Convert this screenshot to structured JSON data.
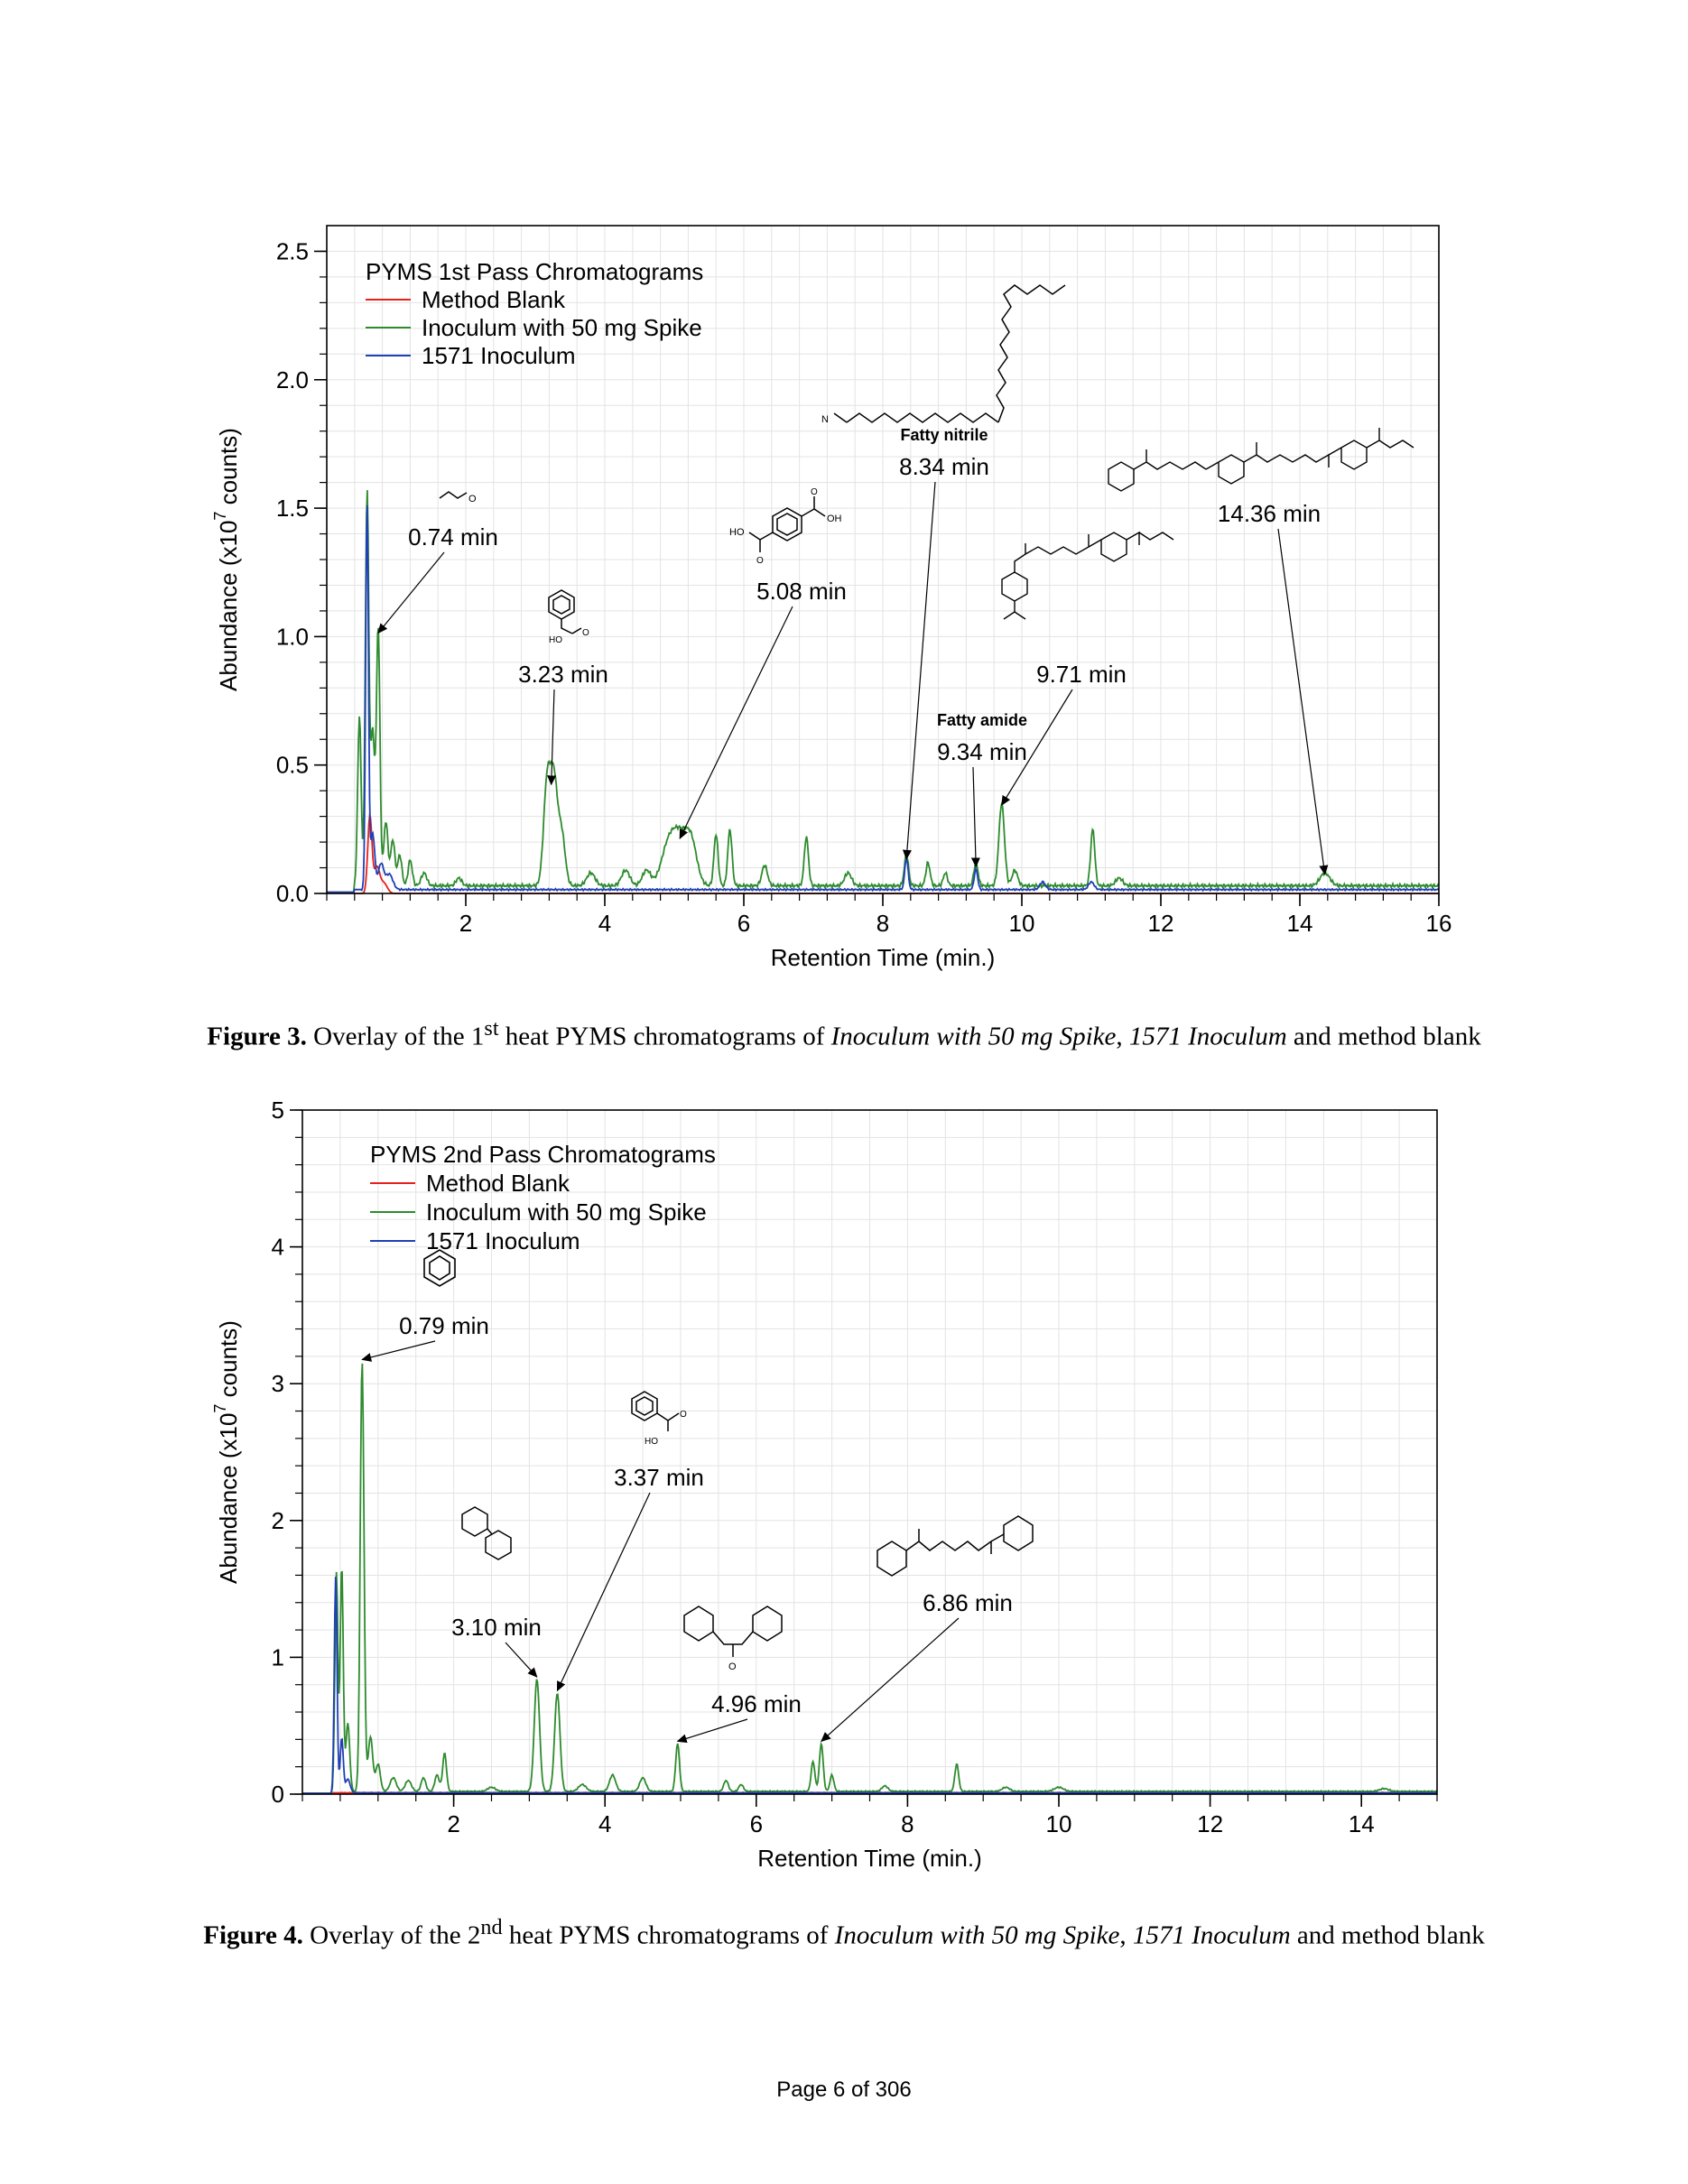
{
  "chart_data": [
    {
      "type": "line",
      "title": "",
      "legend_title": "PYMS 1st Pass Chromatograms",
      "legend_position": "top-left",
      "xlabel": "Retention Time (min.)",
      "ylabel": "Abundance (x10",
      "ylabel_exp": "7",
      "ylabel_end": " counts)",
      "xlim": [
        0,
        16
      ],
      "ylim": [
        0,
        2.6
      ],
      "xticks": [
        2,
        4,
        6,
        8,
        10,
        12,
        14,
        16
      ],
      "yticks": [
        0.0,
        0.5,
        1.0,
        1.5,
        2.0,
        2.5
      ],
      "ytick_labels": [
        "0.0",
        "0.5",
        "1.0",
        "1.5",
        "2.0",
        "2.5"
      ],
      "grid": true,
      "series": [
        {
          "name": "Method Blank",
          "color": "#e8201c",
          "peaks": [
            [
              0.62,
              0.3,
              0.03
            ],
            [
              0.72,
              0.1,
              0.04
            ],
            [
              0.82,
              0.04,
              0.05
            ]
          ]
        },
        {
          "name": "Inoculum with 50 mg Spike",
          "color": "#2e8b2e",
          "peaks": [
            [
              0.47,
              0.66,
              0.025
            ],
            [
              0.58,
              1.53,
              0.025
            ],
            [
              0.66,
              0.6,
              0.03
            ],
            [
              0.74,
              1.0,
              0.025
            ],
            [
              0.85,
              0.25,
              0.03
            ],
            [
              0.95,
              0.18,
              0.03
            ],
            [
              1.05,
              0.12,
              0.03
            ],
            [
              1.2,
              0.1,
              0.03
            ],
            [
              1.4,
              0.05,
              0.04
            ],
            [
              1.9,
              0.03,
              0.04
            ],
            [
              3.17,
              0.4,
              0.05
            ],
            [
              3.27,
              0.39,
              0.05
            ],
            [
              3.38,
              0.2,
              0.05
            ],
            [
              3.8,
              0.05,
              0.06
            ],
            [
              4.3,
              0.06,
              0.06
            ],
            [
              4.6,
              0.06,
              0.06
            ],
            [
              4.9,
              0.12,
              0.1
            ],
            [
              5.08,
              0.19,
              0.12
            ],
            [
              5.25,
              0.13,
              0.08
            ],
            [
              5.6,
              0.2,
              0.03
            ],
            [
              5.8,
              0.22,
              0.03
            ],
            [
              6.3,
              0.08,
              0.04
            ],
            [
              6.9,
              0.19,
              0.03
            ],
            [
              7.5,
              0.05,
              0.05
            ],
            [
              8.34,
              0.12,
              0.03
            ],
            [
              8.65,
              0.09,
              0.03
            ],
            [
              8.9,
              0.05,
              0.03
            ],
            [
              9.34,
              0.09,
              0.03
            ],
            [
              9.71,
              0.32,
              0.04
            ],
            [
              9.9,
              0.06,
              0.04
            ],
            [
              11.02,
              0.22,
              0.03
            ],
            [
              11.4,
              0.03,
              0.05
            ],
            [
              14.36,
              0.05,
              0.07
            ]
          ],
          "baseline": 0.03
        },
        {
          "name": "1571 Inoculum",
          "color": "#1f3fb4",
          "peaks": [
            [
              0.58,
              1.5,
              0.02
            ],
            [
              0.66,
              0.22,
              0.03
            ],
            [
              0.78,
              0.1,
              0.04
            ],
            [
              0.9,
              0.06,
              0.05
            ],
            [
              8.34,
              0.12,
              0.025
            ],
            [
              9.34,
              0.08,
              0.025
            ],
            [
              10.3,
              0.03,
              0.04
            ],
            [
              11.0,
              0.03,
              0.04
            ]
          ],
          "baseline": 0.015
        }
      ],
      "annotations": [
        {
          "label": "0.74 min",
          "sub": "",
          "x": 0.74,
          "y": 1.0
        },
        {
          "label": "3.23 min",
          "sub": "",
          "x": 3.23,
          "y": 0.41
        },
        {
          "label": "5.08 min",
          "sub": "",
          "x": 5.08,
          "y": 0.2
        },
        {
          "label": "8.34 min",
          "sub": "Fatty nitrile",
          "x": 8.34,
          "y": 0.12
        },
        {
          "label": "9.34 min",
          "sub": "Fatty amide",
          "x": 9.34,
          "y": 0.09
        },
        {
          "label": "9.71 min",
          "sub": "",
          "x": 9.71,
          "y": 0.33
        },
        {
          "label": "14.36 min",
          "sub": "",
          "x": 14.36,
          "y": 0.06
        }
      ],
      "structure_labels": {
        "nitrile_N": "N",
        "vinyl_O": "O",
        "ho_top": "HO",
        "oh_top": "OH",
        "o_generic": "O",
        "ho_benz": "HO"
      }
    },
    {
      "type": "line",
      "title": "",
      "legend_title": "PYMS 2nd Pass Chromatograms",
      "legend_position": "top-left",
      "xlabel": "Retention Time (min.)",
      "ylabel": "Abundance (x10",
      "ylabel_exp": "7",
      "ylabel_end": " counts)",
      "xlim": [
        0,
        15
      ],
      "ylim": [
        0,
        5
      ],
      "xticks": [
        2,
        4,
        6,
        8,
        10,
        12,
        14
      ],
      "yticks": [
        0,
        1,
        2,
        3,
        4,
        5
      ],
      "ytick_labels": [
        "0",
        "1",
        "2",
        "3",
        "4",
        "5"
      ],
      "grid": true,
      "series": [
        {
          "name": "Method Blank",
          "color": "#e8201c",
          "peaks": [],
          "baseline": 0.01
        },
        {
          "name": "Inoculum with 50 mg Spike",
          "color": "#2e8b2e",
          "peaks": [
            [
              0.45,
              1.6,
              0.02
            ],
            [
              0.52,
              1.65,
              0.02
            ],
            [
              0.6,
              0.5,
              0.025
            ],
            [
              0.79,
              3.15,
              0.025
            ],
            [
              0.9,
              0.4,
              0.03
            ],
            [
              1.0,
              0.2,
              0.03
            ],
            [
              1.2,
              0.1,
              0.04
            ],
            [
              1.4,
              0.08,
              0.04
            ],
            [
              1.6,
              0.1,
              0.03
            ],
            [
              1.78,
              0.12,
              0.03
            ],
            [
              1.88,
              0.28,
              0.025
            ],
            [
              2.5,
              0.03,
              0.05
            ],
            [
              3.1,
              0.82,
              0.035
            ],
            [
              3.37,
              0.72,
              0.035
            ],
            [
              3.7,
              0.05,
              0.05
            ],
            [
              4.1,
              0.12,
              0.04
            ],
            [
              4.5,
              0.1,
              0.04
            ],
            [
              4.96,
              0.35,
              0.025
            ],
            [
              5.6,
              0.08,
              0.03
            ],
            [
              5.8,
              0.05,
              0.03
            ],
            [
              6.75,
              0.22,
              0.025
            ],
            [
              6.86,
              0.35,
              0.025
            ],
            [
              7.0,
              0.12,
              0.025
            ],
            [
              7.7,
              0.04,
              0.04
            ],
            [
              8.65,
              0.2,
              0.025
            ],
            [
              9.3,
              0.03,
              0.05
            ],
            [
              10.0,
              0.03,
              0.06
            ],
            [
              14.3,
              0.02,
              0.06
            ]
          ],
          "baseline": 0.02
        },
        {
          "name": "1571 Inoculum",
          "color": "#1f3fb4",
          "peaks": [
            [
              0.44,
              1.58,
              0.018
            ],
            [
              0.52,
              0.4,
              0.02
            ],
            [
              0.6,
              0.1,
              0.03
            ]
          ],
          "baseline": 0.01
        }
      ],
      "annotations": [
        {
          "label": "0.79 min",
          "sub": "",
          "x": 0.79,
          "y": 3.15
        },
        {
          "label": "3.10 min",
          "sub": "",
          "x": 3.1,
          "y": 0.83
        },
        {
          "label": "3.37 min",
          "sub": "",
          "x": 3.37,
          "y": 0.73
        },
        {
          "label": "4.96 min",
          "sub": "",
          "x": 4.96,
          "y": 0.36
        },
        {
          "label": "6.86 min",
          "sub": "",
          "x": 6.86,
          "y": 0.36
        }
      ],
      "structure_labels": {
        "ho_benz": "HO",
        "o_generic": "O"
      }
    }
  ],
  "captions": {
    "fig3": {
      "bold": "Figure 3.",
      "t1": "  Overlay of the 1",
      "sup": "st",
      "t2": " heat PYMS chromatograms of ",
      "i1": "Inoculum with 50 mg Spike",
      "t3": ", ",
      "i2": "1571 Inoculum",
      "t4": " and method blank"
    },
    "fig4": {
      "bold": "Figure 4.",
      "t1": "  Overlay of the 2",
      "sup": "nd",
      "t2": " heat PYMS chromatograms of ",
      "i1": "Inoculum with 50 mg Spike",
      "t3": ", ",
      "i2": "1571 Inoculum",
      "t4": " and method blank"
    }
  },
  "footer": "Page 6 of 306"
}
